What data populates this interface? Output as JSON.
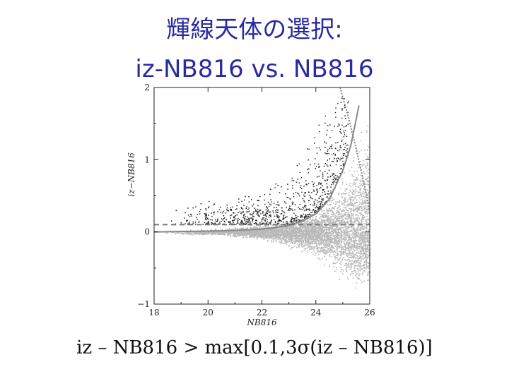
{
  "title": {
    "line1": "輝線天体の選択:",
    "line2": "iz-NB816 vs. NB816"
  },
  "formula": "iz – NB816 > max[0.1,3σ(iz – NB816)]",
  "chart_data": {
    "type": "scatter",
    "xlabel": "NB816",
    "ylabel": "iz−NB816",
    "xlim": [
      18,
      26
    ],
    "ylim": [
      -1,
      2
    ],
    "xticks": [
      18,
      20,
      22,
      24,
      26
    ],
    "yticks": [
      -1,
      0,
      1,
      2
    ],
    "grid": false,
    "threshold_line": {
      "y": 0.1,
      "style": "dashed"
    },
    "series": [
      {
        "kind": "background_objects",
        "color": "#b8b8b8",
        "x": [
          18.5,
          19.5,
          20.5,
          21.5,
          22.5,
          23.5,
          24.0,
          24.5,
          25.0,
          25.5,
          26.0
        ],
        "y_upper": [
          0.03,
          0.04,
          0.06,
          0.1,
          0.15,
          0.25,
          0.35,
          0.55,
          0.9,
          1.4,
          1.9
        ],
        "y_lower": [
          -0.03,
          -0.04,
          -0.06,
          -0.1,
          -0.18,
          -0.3,
          -0.4,
          -0.55,
          -0.75,
          -0.9,
          -0.95
        ]
      },
      {
        "kind": "selected_emitters",
        "color": "#222222",
        "x": [
          19.0,
          20.0,
          21.0,
          22.0,
          22.5,
          23.0,
          23.5,
          24.0,
          24.5,
          25.0
        ],
        "y": [
          0.2,
          0.25,
          0.3,
          0.35,
          0.45,
          0.55,
          0.7,
          0.85,
          1.1,
          1.4
        ]
      },
      {
        "kind": "3sigma_curve",
        "color": "#888888",
        "x": [
          18,
          20,
          21,
          22,
          22.5,
          23,
          23.5,
          24,
          24.5,
          25,
          25.3,
          25.6
        ],
        "y": [
          0.0,
          0.01,
          0.02,
          0.04,
          0.06,
          0.09,
          0.15,
          0.25,
          0.45,
          0.85,
          1.2,
          1.75
        ]
      },
      {
        "kind": "limiting_curve",
        "color": "#888888",
        "x": [
          24.9,
          25.2,
          25.5,
          25.8,
          26.0
        ],
        "y": [
          2.0,
          1.6,
          1.15,
          0.65,
          0.3
        ]
      }
    ]
  }
}
